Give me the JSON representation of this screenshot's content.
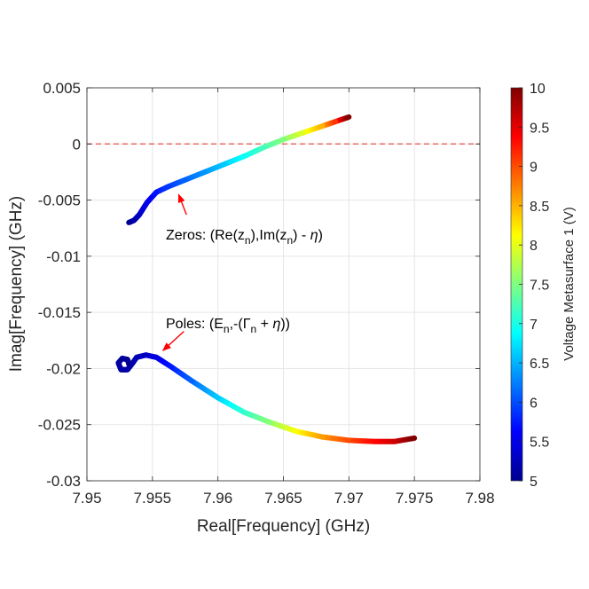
{
  "chart_data": {
    "type": "scatter",
    "title": "",
    "xlabel": "Real[Frequency] (GHz)",
    "ylabel": "Imag[Frequency] (GHz)",
    "xlim": [
      7.95,
      7.98
    ],
    "ylim": [
      -0.03,
      0.005
    ],
    "x_ticks": [
      7.95,
      7.955,
      7.96,
      7.965,
      7.97,
      7.975,
      7.98
    ],
    "x_tick_labels": [
      "7.95",
      "7.955",
      "7.96",
      "7.965",
      "7.97",
      "7.975",
      "7.98"
    ],
    "y_ticks": [
      0.005,
      0,
      -0.005,
      -0.01,
      -0.015,
      -0.02,
      -0.025,
      -0.03
    ],
    "y_tick_labels": [
      "0.005",
      "0",
      "-0.005",
      "-0.01",
      "-0.015",
      "-0.02",
      "-0.025",
      "-0.03"
    ],
    "grid": true,
    "reference_line": {
      "y": 0,
      "style": "dashed",
      "color": "#e8524a"
    },
    "colormap": "jet",
    "colorbar": {
      "label": "Voltage Metasurface 1 (V)",
      "range": [
        5,
        10
      ],
      "ticks": [
        5,
        5.5,
        6,
        6.5,
        7,
        7.5,
        8,
        8.5,
        9,
        9.5,
        10
      ],
      "tick_labels": [
        "5",
        "5.5",
        "6",
        "6.5",
        "7",
        "7.5",
        "8",
        "8.5",
        "9",
        "9.5",
        "10"
      ]
    },
    "series": [
      {
        "name": "Zeros",
        "points": [
          {
            "x": 7.9532,
            "y": -0.007,
            "v": 5.0
          },
          {
            "x": 7.9536,
            "y": -0.0068,
            "v": 5.15
          },
          {
            "x": 7.954,
            "y": -0.0063,
            "v": 5.3
          },
          {
            "x": 7.9546,
            "y": -0.0052,
            "v": 5.5
          },
          {
            "x": 7.9553,
            "y": -0.0043,
            "v": 5.7
          },
          {
            "x": 7.9562,
            "y": -0.0038,
            "v": 5.9
          },
          {
            "x": 7.9575,
            "y": -0.0032,
            "v": 6.1
          },
          {
            "x": 7.959,
            "y": -0.0025,
            "v": 6.35
          },
          {
            "x": 7.9605,
            "y": -0.0018,
            "v": 6.6
          },
          {
            "x": 7.962,
            "y": -0.0011,
            "v": 6.9
          },
          {
            "x": 7.9635,
            "y": -0.0003,
            "v": 7.2
          },
          {
            "x": 7.965,
            "y": 0.0004,
            "v": 7.5
          },
          {
            "x": 7.9665,
            "y": 0.001,
            "v": 7.95
          },
          {
            "x": 7.968,
            "y": 0.0016,
            "v": 8.5
          },
          {
            "x": 7.969,
            "y": 0.002,
            "v": 9.1
          },
          {
            "x": 7.97,
            "y": 0.0024,
            "v": 10.0
          }
        ]
      },
      {
        "name": "Poles",
        "points": [
          {
            "x": 7.9532,
            "y": -0.0196,
            "v": 5.0
          },
          {
            "x": 7.9531,
            "y": -0.0192,
            "v": 5.03
          },
          {
            "x": 7.9527,
            "y": -0.0191,
            "v": 5.06
          },
          {
            "x": 7.9524,
            "y": -0.0195,
            "v": 5.09
          },
          {
            "x": 7.9526,
            "y": -0.0201,
            "v": 5.12
          },
          {
            "x": 7.9531,
            "y": -0.0201,
            "v": 5.15
          },
          {
            "x": 7.9535,
            "y": -0.0195,
            "v": 5.18
          },
          {
            "x": 7.9538,
            "y": -0.019,
            "v": 5.22
          },
          {
            "x": 7.9545,
            "y": -0.0188,
            "v": 5.3
          },
          {
            "x": 7.9553,
            "y": -0.019,
            "v": 5.45
          },
          {
            "x": 7.9565,
            "y": -0.0199,
            "v": 5.75
          },
          {
            "x": 7.958,
            "y": -0.0211,
            "v": 6.1
          },
          {
            "x": 7.96,
            "y": -0.0226,
            "v": 6.6
          },
          {
            "x": 7.962,
            "y": -0.0239,
            "v": 7.1
          },
          {
            "x": 7.964,
            "y": -0.0248,
            "v": 7.55
          },
          {
            "x": 7.966,
            "y": -0.0256,
            "v": 8.1
          },
          {
            "x": 7.968,
            "y": -0.0261,
            "v": 8.6
          },
          {
            "x": 7.97,
            "y": -0.0264,
            "v": 9.0
          },
          {
            "x": 7.972,
            "y": -0.0265,
            "v": 9.35
          },
          {
            "x": 7.9735,
            "y": -0.0265,
            "v": 9.6
          },
          {
            "x": 7.975,
            "y": -0.0262,
            "v": 10.0
          }
        ]
      }
    ],
    "annotations": [
      {
        "name": "zeros",
        "text_parts": [
          "Zeros: (Re(z",
          "n",
          "),Im(z",
          "n",
          ") - ",
          "η",
          ")"
        ],
        "arrow_from": {
          "x": 7.9576,
          "y": -0.0063
        },
        "arrow_to": {
          "x": 7.957,
          "y": -0.0045
        },
        "color": "#ff0000"
      },
      {
        "name": "poles",
        "text_parts": [
          "Poles: (E",
          "n",
          ",-(",
          "Γ",
          "n",
          " + ",
          "η",
          "))"
        ],
        "arrow_from": {
          "x": 7.9574,
          "y": -0.0167
        },
        "arrow_to": {
          "x": 7.9558,
          "y": -0.0184
        },
        "color": "#ff0000"
      }
    ]
  }
}
